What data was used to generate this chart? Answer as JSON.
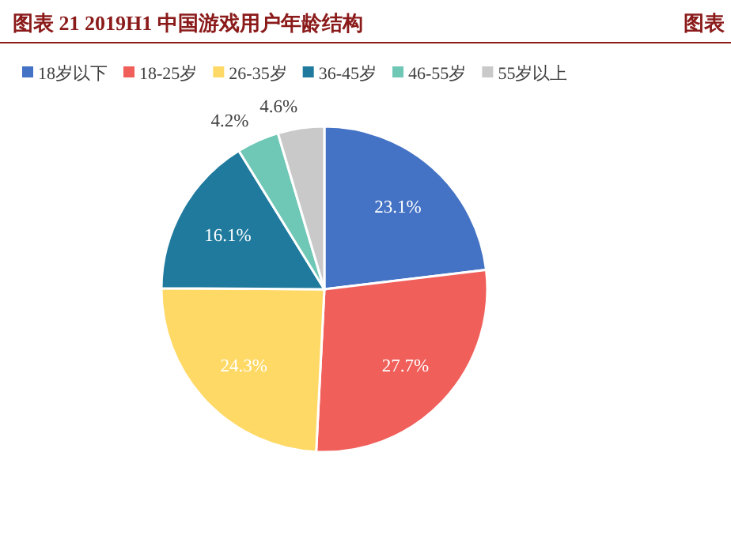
{
  "chart_data": {
    "type": "pie",
    "title": "图表 21 2019H1 中国游戏用户年龄结构",
    "categories": [
      "18岁以下",
      "18-25岁",
      "26-35岁",
      "36-45岁",
      "46-55岁",
      "55岁以上"
    ],
    "values": [
      23.1,
      27.7,
      24.3,
      16.1,
      4.2,
      4.6
    ],
    "colors": [
      "#4472c4",
      "#f05f5a",
      "#ffd966",
      "#1f7a9e",
      "#6fc7b6",
      "#c9c9c9"
    ],
    "value_labels": [
      "23.1%",
      "27.7%",
      "24.3%",
      "16.1%",
      "4.2%",
      "4.6%"
    ],
    "legend": "top",
    "annotations": [
      "图表"
    ]
  }
}
